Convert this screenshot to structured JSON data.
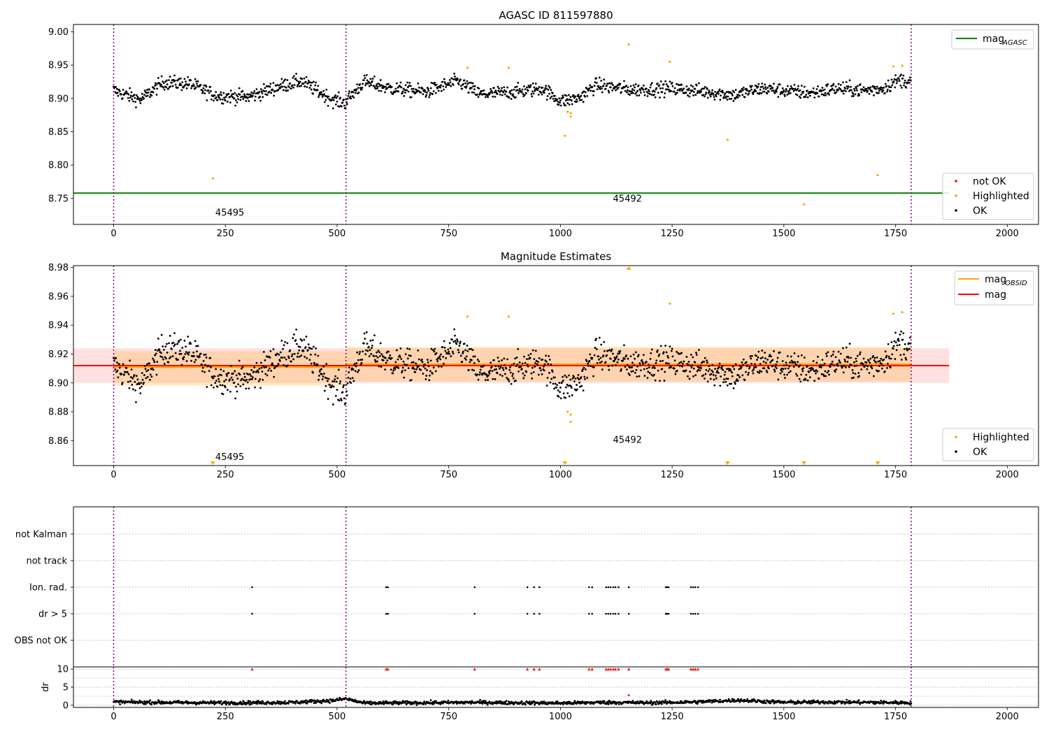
{
  "figure": {
    "title": "AGASC ID 811597880"
  },
  "chart_data": [
    {
      "type": "scatter",
      "title": "AGASC ID 811597880",
      "xlim": [
        -90,
        2070
      ],
      "ylim": [
        8.711,
        9.011
      ],
      "xticks": [
        0,
        250,
        500,
        750,
        1000,
        1250,
        1500,
        1750,
        2000
      ],
      "yticks": [
        "8.75",
        "8.80",
        "8.85",
        "8.90",
        "8.95",
        "9.00"
      ],
      "obs_boundaries": [
        0,
        520,
        1785
      ],
      "obs_labels": [
        {
          "text": "45495",
          "x": 260,
          "y": 8.724
        },
        {
          "text": "45492",
          "x": 1150,
          "y": 8.745
        }
      ],
      "mag_agasc": {
        "value": 8.758,
        "x_range": [
          -90,
          1870
        ]
      },
      "ok_series": {
        "name": "OK",
        "segments": [
          {
            "x0": 0,
            "x1": 520,
            "profile": [
              [
                0,
                8.912
              ],
              [
                60,
                8.898
              ],
              [
                110,
                8.924
              ],
              [
                170,
                8.922
              ],
              [
                230,
                8.904
              ],
              [
                300,
                8.902
              ],
              [
                370,
                8.918
              ],
              [
                420,
                8.926
              ],
              [
                490,
                8.898
              ],
              [
                520,
                8.893
              ]
            ]
          },
          {
            "x0": 520,
            "x1": 1785,
            "profile": [
              [
                520,
                8.896
              ],
              [
                560,
                8.925
              ],
              [
                620,
                8.915
              ],
              [
                700,
                8.91
              ],
              [
                770,
                8.926
              ],
              [
                820,
                8.906
              ],
              [
                900,
                8.91
              ],
              [
                960,
                8.915
              ],
              [
                1000,
                8.896
              ],
              [
                1040,
                8.9
              ],
              [
                1080,
                8.92
              ],
              [
                1160,
                8.913
              ],
              [
                1250,
                8.915
              ],
              [
                1330,
                8.91
              ],
              [
                1390,
                8.905
              ],
              [
                1450,
                8.915
              ],
              [
                1500,
                8.912
              ],
              [
                1560,
                8.908
              ],
              [
                1620,
                8.915
              ],
              [
                1680,
                8.912
              ],
              [
                1720,
                8.915
              ],
              [
                1760,
                8.928
              ],
              [
                1785,
                8.925
              ]
            ]
          }
        ]
      },
      "highlighted": [
        {
          "x": 222,
          "y": 8.78
        },
        {
          "x": 792,
          "y": 8.946
        },
        {
          "x": 884,
          "y": 8.946
        },
        {
          "x": 1010,
          "y": 8.844
        },
        {
          "x": 1016,
          "y": 8.88
        },
        {
          "x": 1023,
          "y": 8.878
        },
        {
          "x": 1023,
          "y": 8.873
        },
        {
          "x": 1153,
          "y": 8.981
        },
        {
          "x": 1245,
          "y": 8.955
        },
        {
          "x": 1374,
          "y": 8.838
        },
        {
          "x": 1545,
          "y": 8.741
        },
        {
          "x": 1710,
          "y": 8.785
        },
        {
          "x": 1745,
          "y": 8.948
        },
        {
          "x": 1765,
          "y": 8.949
        }
      ],
      "legend_top": [
        {
          "label": "mag",
          "sub": "AGASC",
          "color": "#008000"
        }
      ],
      "legend_bottom": [
        {
          "label": "not OK",
          "color": "#ff0000"
        },
        {
          "label": "Highlighted",
          "color": "#ffa500"
        },
        {
          "label": "OK",
          "color": "#000000"
        }
      ]
    },
    {
      "type": "scatter",
      "title": "Magnitude Estimates",
      "xlim": [
        -90,
        2070
      ],
      "ylim": [
        8.8427,
        8.9813
      ],
      "xticks": [
        0,
        250,
        500,
        750,
        1000,
        1250,
        1500,
        1750,
        2000
      ],
      "yticks": [
        "8.86",
        "8.88",
        "8.90",
        "8.92",
        "8.94",
        "8.96",
        "8.98"
      ],
      "obs_boundaries": [
        0,
        520,
        1785
      ],
      "obs_labels": [
        {
          "text": "45495",
          "x": 260,
          "y": 8.8465
        },
        {
          "text": "45492",
          "x": 1150,
          "y": 8.8585
        }
      ],
      "mag": {
        "value": 8.912,
        "band": [
          8.9,
          8.924
        ],
        "x_range": [
          -90,
          1870
        ]
      },
      "mag_obsid": [
        {
          "x0": 0,
          "x1": 520,
          "value": 8.911,
          "band": [
            8.898,
            8.922
          ]
        },
        {
          "x0": 520,
          "x1": 1785,
          "value": 8.913,
          "band": [
            8.901,
            8.925
          ]
        }
      ],
      "ok_series": {
        "name": "OK",
        "segments": [
          {
            "x0": 0,
            "x1": 520,
            "profile": [
              [
                0,
                8.912
              ],
              [
                60,
                8.898
              ],
              [
                110,
                8.924
              ],
              [
                170,
                8.922
              ],
              [
                230,
                8.904
              ],
              [
                300,
                8.902
              ],
              [
                370,
                8.918
              ],
              [
                420,
                8.926
              ],
              [
                490,
                8.898
              ],
              [
                520,
                8.893
              ]
            ]
          },
          {
            "x0": 520,
            "x1": 1785,
            "profile": [
              [
                520,
                8.896
              ],
              [
                560,
                8.925
              ],
              [
                620,
                8.915
              ],
              [
                700,
                8.91
              ],
              [
                770,
                8.926
              ],
              [
                820,
                8.906
              ],
              [
                900,
                8.91
              ],
              [
                960,
                8.915
              ],
              [
                1000,
                8.896
              ],
              [
                1040,
                8.9
              ],
              [
                1080,
                8.92
              ],
              [
                1160,
                8.913
              ],
              [
                1250,
                8.915
              ],
              [
                1330,
                8.91
              ],
              [
                1390,
                8.905
              ],
              [
                1450,
                8.915
              ],
              [
                1500,
                8.912
              ],
              [
                1560,
                8.908
              ],
              [
                1620,
                8.915
              ],
              [
                1680,
                8.912
              ],
              [
                1720,
                8.915
              ],
              [
                1760,
                8.928
              ],
              [
                1785,
                8.925
              ]
            ]
          }
        ]
      },
      "highlighted": [
        {
          "x": 792,
          "y": 8.946
        },
        {
          "x": 884,
          "y": 8.946
        },
        {
          "x": 1016,
          "y": 8.88
        },
        {
          "x": 1023,
          "y": 8.878
        },
        {
          "x": 1023,
          "y": 8.873
        },
        {
          "x": 1245,
          "y": 8.955
        },
        {
          "x": 1745,
          "y": 8.948
        },
        {
          "x": 1765,
          "y": 8.949
        }
      ],
      "offscale_low": [
        222,
        1010,
        1374,
        1545,
        1710
      ],
      "offscale_high": [
        1153
      ],
      "legend_top": [
        {
          "label": "mag",
          "sub": "OBSID",
          "color": "#ffa500"
        },
        {
          "label": "mag",
          "color": "#ff0000"
        }
      ],
      "legend_bottom": [
        {
          "label": "Highlighted",
          "color": "#ffa500"
        },
        {
          "label": "OK",
          "color": "#000000"
        }
      ]
    },
    {
      "type": "scatter",
      "xlim": [
        -90,
        2070
      ],
      "categories": [
        "OBS not OK",
        "dr > 5",
        "Ion. rad.",
        "not track",
        "not Kalman"
      ],
      "obs_boundaries": [
        0,
        520,
        1785
      ],
      "flag_x": [
        310,
        610,
        614,
        808,
        926,
        941,
        953,
        1064,
        1071,
        1102,
        1107,
        1112,
        1118,
        1123,
        1130,
        1153,
        1236,
        1239,
        1242,
        1292,
        1297,
        1302,
        1308
      ],
      "flag_rows": [
        "dr > 5",
        "Ion. rad."
      ]
    },
    {
      "type": "scatter",
      "xlim": [
        -90,
        2070
      ],
      "ylim": [
        -0.6,
        10.6
      ],
      "ylabel": "dr",
      "yticks": [
        "0",
        "5",
        "10"
      ],
      "xticks": [
        0,
        250,
        500,
        750,
        1000,
        1250,
        1500,
        1750,
        2000
      ],
      "obs_boundaries": [
        0,
        520,
        1785
      ],
      "dr_profile": [
        [
          0,
          0.9
        ],
        [
          100,
          0.8
        ],
        [
          200,
          0.7
        ],
        [
          300,
          0.7
        ],
        [
          400,
          0.8
        ],
        [
          490,
          1.3
        ],
        [
          520,
          1.8
        ],
        [
          560,
          0.6
        ],
        [
          700,
          0.7
        ],
        [
          800,
          0.8
        ],
        [
          900,
          0.7
        ],
        [
          1000,
          0.6
        ],
        [
          1100,
          0.8
        ],
        [
          1200,
          0.7
        ],
        [
          1300,
          0.9
        ],
        [
          1400,
          1.4
        ],
        [
          1500,
          0.8
        ],
        [
          1600,
          0.9
        ],
        [
          1700,
          0.8
        ],
        [
          1785,
          0.7
        ]
      ],
      "dr_high_x": [
        310,
        610,
        614,
        808,
        926,
        941,
        953,
        1064,
        1071,
        1102,
        1107,
        1112,
        1118,
        1123,
        1130,
        1153,
        1236,
        1239,
        1242,
        1292,
        1297,
        1302,
        1308
      ],
      "dr_high_y": 10,
      "dr_extra": [
        {
          "x": 1153,
          "y": 2.8
        }
      ]
    }
  ],
  "colors": {
    "ok": "#000000",
    "highlighted": "#ffa500",
    "not_ok": "#ff0000",
    "boundary": "#800080",
    "mag_agasc": "#008000",
    "mag": "#ff0000",
    "mag_obsid": "#ffa500"
  }
}
